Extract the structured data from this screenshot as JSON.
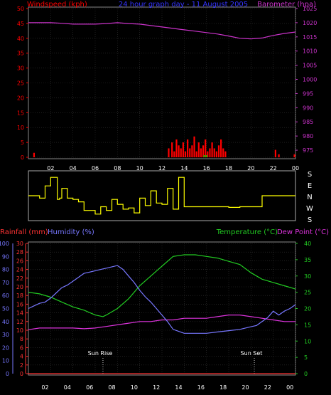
{
  "header": {
    "top_left": "Windspeed (kph)",
    "top_center": "24 hour graph day - 11 August 2005",
    "top_right": "Barometer (hpa)",
    "bottom_left_rain": "Rainfall (mm)",
    "bottom_left_hum": "Humidity (%)",
    "bottom_right_temp": "Temperature (°C)",
    "bottom_right_dew": "Dew Point (°C)",
    "sun_rise": "Sun Rise",
    "sun_set": "Sun Set"
  },
  "colors": {
    "wind": "#ff0000",
    "gust": "#00cc00",
    "barometer": "#cc33cc",
    "direction": "#ffff00",
    "rain": "#ff3333",
    "humidity": "#7777ff",
    "temperature": "#22cc22",
    "dew": "#dd33dd",
    "text_white": "#ffffff"
  },
  "chart_data": [
    {
      "type": "line",
      "title": "24 hour graph day - 11 August 2005",
      "ylabel": "Windspeed (kph)",
      "y2label": "Barometer (hpa)",
      "x_ticks": [
        "02",
        "04",
        "06",
        "08",
        "10",
        "12",
        "14",
        "16",
        "18",
        "20",
        "22",
        "00"
      ],
      "ylim": [
        0,
        50
      ],
      "y_ticks": [
        0,
        5,
        10,
        15,
        20,
        25,
        30,
        35,
        40,
        45,
        50
      ],
      "y2lim": [
        972.5,
        1025
      ],
      "y2_ticks": [
        975,
        980,
        985,
        990,
        995,
        1000,
        1005,
        1010,
        1015,
        1020,
        1025
      ],
      "series": [
        {
          "name": "Barometer (hpa)",
          "axis": "right",
          "x": [
            0,
            1,
            2,
            3,
            4,
            5,
            6,
            7,
            8,
            9,
            10,
            11,
            12,
            13,
            14,
            15,
            16,
            17,
            18,
            19,
            20,
            21,
            22,
            23,
            24
          ],
          "values": [
            1020,
            1020,
            1020,
            1019.8,
            1019.5,
            1019.5,
            1019.5,
            1019.7,
            1020,
            1019.7,
            1019.5,
            1019,
            1018.5,
            1018,
            1017.5,
            1017,
            1016.5,
            1016,
            1015.3,
            1014.5,
            1014.3,
            1014.6,
            1015.5,
            1016.2,
            1016.7
          ]
        },
        {
          "name": "Windspeed (kph)",
          "axis": "left",
          "kind": "bars",
          "x": [
            0.5,
            12.6,
            12.9,
            13.1,
            13.3,
            13.5,
            13.7,
            13.9,
            14.1,
            14.3,
            14.5,
            14.7,
            14.9,
            15.1,
            15.3,
            15.5,
            15.7,
            15.9,
            16.1,
            16.3,
            16.5,
            16.7,
            16.9,
            17.1,
            17.3,
            17.5,
            17.7,
            22.2,
            22.5,
            23.9
          ],
          "values": [
            1.5,
            3,
            5,
            2,
            6,
            4,
            3,
            5,
            2,
            6,
            3,
            4,
            7,
            2,
            5,
            3,
            4,
            6,
            2,
            3,
            5,
            3,
            2,
            4,
            6,
            3,
            2,
            2.5,
            1,
            1
          ]
        }
      ]
    },
    {
      "type": "line",
      "ylabel": "S E N W S",
      "y_ticks_right": [
        "S",
        "E",
        "N",
        "W",
        "S"
      ],
      "x": [
        0,
        0.5,
        1,
        1.5,
        2,
        2.4,
        2.6,
        2.8,
        3,
        3.5,
        4,
        4.5,
        5,
        5.5,
        6,
        6.5,
        7,
        7.5,
        8,
        8.5,
        9,
        9.5,
        10,
        10.5,
        11,
        11.5,
        12,
        12.5,
        13,
        13.5,
        14,
        15,
        16,
        17,
        18,
        19,
        20,
        21,
        22,
        23,
        24
      ],
      "values": [
        180,
        180,
        200,
        100,
        30,
        30,
        210,
        200,
        120,
        200,
        210,
        230,
        300,
        300,
        330,
        270,
        300,
        210,
        250,
        290,
        280,
        320,
        200,
        260,
        140,
        240,
        250,
        120,
        290,
        30,
        270,
        270,
        270,
        270,
        275,
        270,
        270,
        180,
        180,
        180,
        180
      ]
    },
    {
      "type": "line",
      "ylabel": "Rainfall (mm)",
      "y2label": "Humidity (%)",
      "y3label": "Temperature (°C)",
      "y4label": "Dew Point (°C)",
      "x_ticks": [
        "02",
        "04",
        "06",
        "08",
        "10",
        "12",
        "14",
        "16",
        "18",
        "20",
        "22",
        "00"
      ],
      "rain_ticks": [
        0,
        2,
        4,
        6,
        8,
        10,
        12,
        14,
        16,
        18,
        20,
        22,
        24,
        26,
        28,
        30
      ],
      "humidity_ticks": [
        0,
        10,
        20,
        30,
        40,
        50,
        60,
        70,
        80,
        90,
        100
      ],
      "temp_ticks": [
        0,
        5,
        10,
        15,
        20,
        25,
        30,
        35,
        40
      ],
      "sun_rise_hour": 6.7,
      "sun_set_hour": 20.3,
      "series": [
        {
          "name": "Humidity (%)",
          "x": [
            0,
            0.5,
            1,
            1.5,
            2,
            2.5,
            3,
            3.5,
            4,
            4.5,
            5,
            5.5,
            6,
            6.5,
            7,
            7.5,
            8,
            8.5,
            9,
            9.5,
            10,
            10.5,
            11,
            11.5,
            12,
            12.5,
            13,
            14,
            15,
            16,
            17,
            18,
            19,
            20,
            20.5,
            21,
            21.5,
            22,
            22.5,
            23,
            23.5,
            24
          ],
          "values": [
            50,
            52,
            54,
            55,
            58,
            62,
            66,
            68,
            71,
            74,
            77,
            78,
            79,
            80,
            81,
            82,
            83,
            80,
            75,
            70,
            64,
            59,
            55,
            50,
            45,
            40,
            34,
            31,
            31,
            31,
            32,
            33,
            34,
            36,
            37,
            40,
            43,
            48,
            45,
            48,
            50,
            53
          ]
        },
        {
          "name": "Temperature (°C)",
          "x": [
            0,
            1,
            2,
            3,
            4,
            5,
            6,
            6.7,
            7,
            8,
            9,
            10,
            11,
            12,
            13,
            14,
            15,
            16,
            17,
            18,
            19,
            20,
            21,
            22,
            23,
            24
          ],
          "values": [
            25,
            24.5,
            23.5,
            22,
            20.5,
            19.5,
            18,
            17.5,
            18,
            20,
            23,
            27,
            30,
            33,
            36,
            36.5,
            36.5,
            36,
            35.5,
            34.5,
            33.5,
            31,
            29,
            28,
            27,
            26
          ]
        },
        {
          "name": "Dew Point (°C)",
          "x": [
            0,
            1,
            2,
            3,
            4,
            5,
            6,
            7,
            8,
            9,
            10,
            11,
            12,
            13,
            14,
            15,
            16,
            17,
            18,
            19,
            20,
            21,
            22,
            23,
            24
          ],
          "values": [
            13.5,
            14,
            14,
            14,
            14,
            13.8,
            14,
            14.5,
            15,
            15.5,
            16,
            16,
            16.5,
            16.5,
            17,
            17,
            17,
            17.5,
            18,
            18,
            17.5,
            17,
            16.5,
            16,
            16
          ]
        },
        {
          "name": "Rainfall (mm)",
          "x": [
            0,
            24
          ],
          "values": [
            0,
            0
          ]
        }
      ]
    }
  ]
}
